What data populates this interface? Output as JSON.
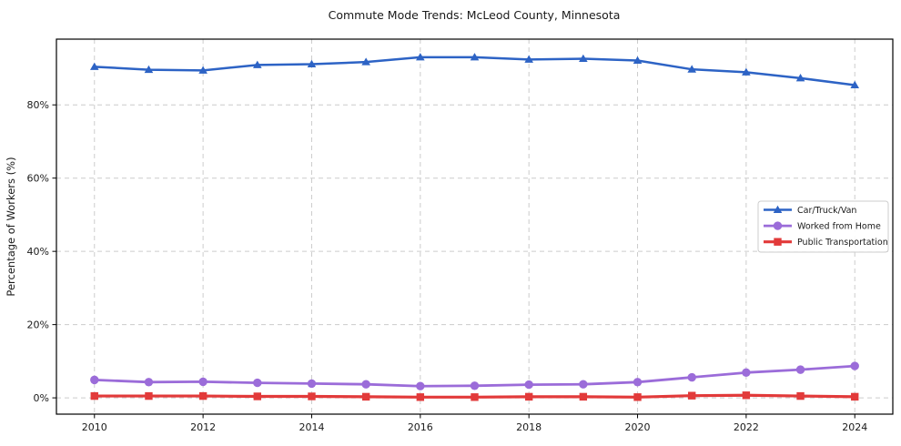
{
  "chart_data": {
    "type": "line",
    "title": "Commute Mode Trends: McLeod County, Minnesota",
    "xlabel": "",
    "ylabel": "Percentage of Workers (%)",
    "x": [
      2010,
      2011,
      2012,
      2013,
      2014,
      2015,
      2016,
      2017,
      2018,
      2019,
      2020,
      2021,
      2022,
      2023,
      2024
    ],
    "x_ticks": [
      2010,
      2012,
      2014,
      2016,
      2018,
      2020,
      2022,
      2024
    ],
    "x_tick_labels": [
      "2010",
      "2012",
      "2014",
      "2016",
      "2018",
      "2020",
      "2022",
      "2024"
    ],
    "y_ticks": [
      0,
      20,
      40,
      60,
      80
    ],
    "y_tick_labels": [
      "0%",
      "20%",
      "40%",
      "60%",
      "80%"
    ],
    "xlim": [
      2009.3,
      2024.7
    ],
    "ylim": [
      -4.45,
      97.95
    ],
    "grid": true,
    "grid_style": "dashed",
    "legend_position": "center-right",
    "series": [
      {
        "name": "Car/Truck/Van",
        "color": "#2d63c5",
        "marker": "triangle",
        "line_width": 2.5,
        "values": [
          90.4,
          89.6,
          89.4,
          90.9,
          91.1,
          91.7,
          93.0,
          93.0,
          92.4,
          92.6,
          92.1,
          89.7,
          88.9,
          87.3,
          85.4
        ]
      },
      {
        "name": "Worked from Home",
        "color": "#9b6cd9",
        "marker": "circle",
        "line_width": 2.8,
        "values": [
          4.9,
          4.3,
          4.4,
          4.1,
          3.9,
          3.7,
          3.2,
          3.3,
          3.6,
          3.7,
          4.3,
          5.6,
          6.9,
          7.7,
          8.7
        ]
      },
      {
        "name": "Public Transportation",
        "color": "#e23a3a",
        "marker": "square",
        "line_width": 3.2,
        "values": [
          0.5,
          0.5,
          0.5,
          0.4,
          0.4,
          0.3,
          0.2,
          0.2,
          0.3,
          0.3,
          0.2,
          0.6,
          0.7,
          0.5,
          0.3
        ]
      }
    ],
    "colors": {
      "background": "#ffffff",
      "grid": "#cccccc",
      "axis": "#000000",
      "text": "#1a1a1a",
      "legend_border": "#cccccc",
      "legend_background": "#ffffff"
    }
  }
}
